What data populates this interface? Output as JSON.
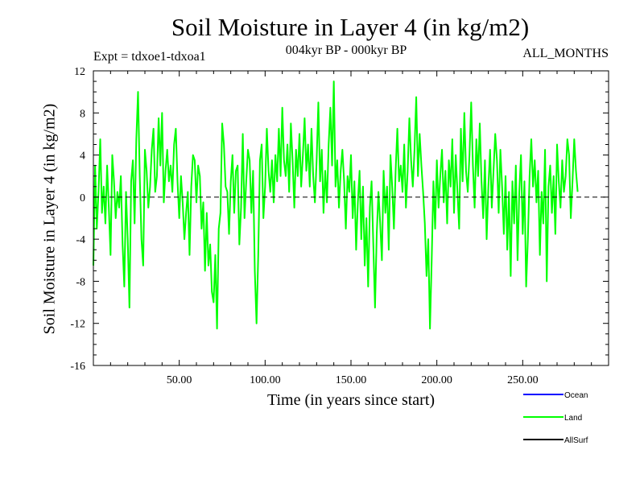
{
  "chart_data": {
    "type": "line",
    "title": "Soil Moisture in Layer 4 (in kg/m2)",
    "subtitle": "004kyr BP - 000kyr BP",
    "experiment": "Expt = tdxoe1-tdxoa1",
    "period": "ALL_MONTHS",
    "xlabel": "Time (in years since start)",
    "ylabel": "Soil Moisture in Layer 4 (in kg/m2)",
    "xlim": [
      0,
      300
    ],
    "ylim": [
      -16,
      12
    ],
    "xticks": [
      "50.00",
      "100.00",
      "150.00",
      "200.00",
      "250.00"
    ],
    "yticks": [
      "12",
      "8",
      "4",
      "0",
      "-4",
      "-8",
      "-12",
      "-16"
    ],
    "zero_line": "dashed",
    "legend": [
      {
        "name": "Ocean",
        "color": "#0000ff"
      },
      {
        "name": "Land",
        "color": "#00ff00"
      },
      {
        "name": "AllSurf",
        "color": "#000000"
      }
    ],
    "series": [
      {
        "name": "Land",
        "color": "#00ff00",
        "x_start": 0,
        "x_step": 1,
        "values": [
          -6.5,
          3.0,
          -3.0,
          0.5,
          5.5,
          -1.5,
          1.0,
          -2.5,
          3.0,
          -1.0,
          -5.5,
          4.0,
          1.5,
          -2.0,
          0.5,
          -1.0,
          2.0,
          -4.5,
          -8.5,
          0.5,
          -4.0,
          -10.5,
          1.5,
          3.5,
          -2.5,
          5.5,
          10.0,
          2.0,
          -4.0,
          -6.5,
          4.5,
          2.5,
          -1.0,
          1.0,
          4.5,
          6.5,
          0.5,
          2.0,
          7.5,
          3.0,
          8.0,
          -0.5,
          2.5,
          4.5,
          1.5,
          3.0,
          0.5,
          5.0,
          6.5,
          1.5,
          -2.0,
          2.0,
          -0.5,
          -4.0,
          -1.5,
          0.5,
          -5.5,
          1.0,
          4.0,
          3.5,
          -0.5,
          3.0,
          2.0,
          -3.0,
          -0.5,
          -7.0,
          -1.5,
          -6.5,
          -4.5,
          -9.0,
          -10.0,
          -5.5,
          -12.5,
          -3.0,
          -1.5,
          7.0,
          5.0,
          1.0,
          0.5,
          -3.5,
          1.5,
          4.0,
          -1.5,
          2.5,
          3.0,
          -4.5,
          -1.0,
          6.0,
          -2.0,
          1.5,
          4.5,
          3.5,
          -1.5,
          2.5,
          -7.0,
          -12.0,
          -5.5,
          3.5,
          5.0,
          -2.0,
          1.0,
          6.5,
          2.5,
          0.5,
          3.5,
          -0.5,
          4.0,
          1.5,
          6.5,
          2.0,
          8.5,
          3.5,
          2.0,
          5.0,
          0.5,
          7.0,
          3.5,
          -1.0,
          4.5,
          2.0,
          6.0,
          1.0,
          4.0,
          7.5,
          2.5,
          5.0,
          1.0,
          6.5,
          2.0,
          -0.5,
          3.5,
          9.0,
          1.5,
          4.5,
          -1.5,
          2.5,
          -0.5,
          5.0,
          8.5,
          3.0,
          11.0,
          1.0,
          3.5,
          -1.0,
          2.5,
          4.5,
          1.5,
          -3.0,
          2.0,
          0.5,
          4.0,
          -2.0,
          1.5,
          -5.0,
          -0.5,
          2.5,
          -4.0,
          1.0,
          -6.5,
          -2.0,
          -8.5,
          -1.0,
          1.5,
          -4.5,
          -10.5,
          -3.5,
          0.5,
          -2.5,
          -6.0,
          2.5,
          -1.5,
          1.0,
          -5.0,
          4.0,
          1.0,
          -3.0,
          2.5,
          6.5,
          1.5,
          3.0,
          0.5,
          5.0,
          -1.0,
          2.5,
          7.5,
          3.5,
          1.0,
          4.5,
          9.5,
          2.0,
          6.0,
          3.0,
          0.5,
          -2.5,
          -7.5,
          -4.0,
          -12.5,
          -6.0,
          1.5,
          -3.0,
          3.5,
          -1.0,
          2.0,
          4.5,
          -0.5,
          2.5,
          -2.5,
          3.5,
          1.0,
          5.5,
          -1.5,
          4.0,
          0.5,
          -3.0,
          6.5,
          1.5,
          8.0,
          2.5,
          0.5,
          4.0,
          9.0,
          3.0,
          -1.0,
          5.5,
          2.0,
          7.0,
          1.5,
          -2.0,
          3.5,
          -4.0,
          1.0,
          4.5,
          -1.0,
          2.5,
          6.0,
          3.5,
          -1.5,
          4.5,
          1.0,
          -3.5,
          2.0,
          -5.0,
          0.5,
          -7.5,
          1.5,
          -2.5,
          3.0,
          -6.0,
          0.5,
          4.0,
          -3.5,
          1.5,
          -8.5,
          -4.0,
          2.0,
          5.5,
          1.0,
          3.5,
          -0.5,
          2.5,
          -5.5,
          0.5,
          -2.5,
          4.5,
          -8.0,
          1.0,
          3.0,
          -1.5,
          2.0,
          -3.5,
          5.0,
          1.5,
          -1.0,
          3.5,
          0.5,
          2.0,
          5.5,
          4.0,
          -2.0,
          1.5,
          5.5,
          2.5,
          0.5
        ]
      }
    ]
  }
}
